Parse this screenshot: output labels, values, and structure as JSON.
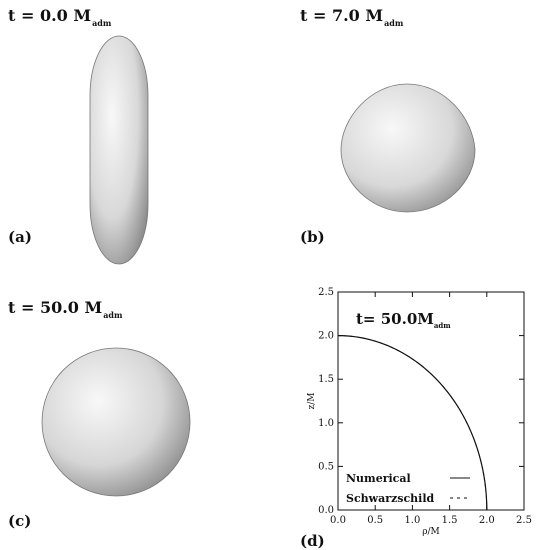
{
  "panels": [
    {
      "id": "a",
      "label": "(a)",
      "time": "t = 0.0 M",
      "subscript": "adm"
    },
    {
      "id": "b",
      "label": "(b)",
      "time": "t = 7.0 M",
      "subscript": "adm"
    },
    {
      "id": "c",
      "label": "(c)",
      "time": "t = 50.0 M",
      "subscript": "adm"
    },
    {
      "id": "d",
      "label": "(d)"
    }
  ],
  "chart_data": {
    "type": "line",
    "annotation": "t= 50.0M",
    "annotation_subscript": "adm",
    "xlabel": "ρ/M",
    "ylabel": "z/M",
    "xlim": [
      0,
      2.5
    ],
    "ylim": [
      0,
      2.5
    ],
    "xticks": [
      "0.0",
      "0.5",
      "1.0",
      "1.5",
      "2.0",
      "2.5"
    ],
    "yticks": [
      "0.0",
      "0.5",
      "1.0",
      "1.5",
      "2.0",
      "2.5"
    ],
    "legend_position": "bottom-left",
    "series": [
      {
        "name": "Numerical",
        "style": "solid",
        "radius": 2.0
      },
      {
        "name": "Schwarzschild",
        "style": "dashed",
        "radius": 2.0
      }
    ]
  },
  "colors": {
    "surface_light": "#f7f7f7",
    "surface_mid": "#d6d6d6",
    "surface_dark": "#8a8a8a",
    "ink": "#111111"
  }
}
